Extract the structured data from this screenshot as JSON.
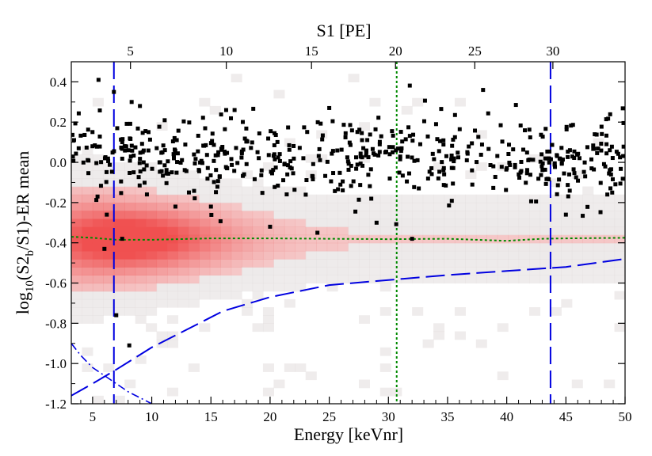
{
  "chart_data": {
    "type": "scatter",
    "title": "",
    "xlabel": "Energy [keVnr]",
    "ylabel_main": "log",
    "ylabel_sub1": "10",
    "ylabel_mid": "(S2",
    "ylabel_sub2": "b",
    "ylabel_end": "/S1)-ER mean",
    "top_xlabel": "S1 [PE]",
    "xlim": [
      3.2,
      50
    ],
    "ylim": [
      -1.2,
      0.5
    ],
    "grid": false,
    "x_ticks": [
      5,
      10,
      15,
      20,
      25,
      30,
      35,
      40,
      45,
      50
    ],
    "x_ticklabels": [
      "5",
      "10",
      "15",
      "20",
      "25",
      "30",
      "35",
      "40",
      "45",
      "50"
    ],
    "y_ticks": [
      -1.2,
      -1.0,
      -0.8,
      -0.6,
      -0.4,
      -0.2,
      0.0,
      0.2,
      0.4
    ],
    "y_ticklabels": [
      "-1.2",
      "-1.0",
      "-0.8",
      "-0.6",
      "-0.4",
      "-0.2",
      "0.0",
      "0.2",
      "0.4"
    ],
    "top_ticks_s1": [
      5,
      10,
      15,
      20,
      25,
      30
    ],
    "top_ticklabels": [
      "5",
      "10",
      "15",
      "20",
      "25",
      "30"
    ],
    "top_tick_energy": [
      8.2,
      16.3,
      23.5,
      30.6,
      37.3,
      43.9
    ],
    "vertical_lines": [
      {
        "x": 6.8,
        "style": "long-dash",
        "color": "#0000e0"
      },
      {
        "x": 43.7,
        "style": "long-dash",
        "color": "#0000e0"
      },
      {
        "x": 30.7,
        "style": "dotted",
        "color": "#008a00"
      }
    ],
    "nr_median_line": {
      "color": "#008a00",
      "x": [
        3.2,
        5,
        7,
        10,
        15,
        20,
        25,
        30,
        35,
        40,
        43,
        45,
        50
      ],
      "y": [
        -0.37,
        -0.375,
        -0.385,
        -0.385,
        -0.378,
        -0.378,
        -0.38,
        -0.382,
        -0.38,
        -0.39,
        -0.38,
        -0.378,
        -0.375
      ]
    },
    "acceptance_curve": {
      "color": "#0000e0",
      "x": [
        3.2,
        5,
        7,
        10,
        13,
        16,
        20,
        25,
        30,
        35,
        40,
        45,
        50
      ],
      "y": [
        -1.16,
        -1.1,
        -1.03,
        -0.92,
        -0.83,
        -0.74,
        -0.67,
        -0.61,
        -0.585,
        -0.56,
        -0.54,
        -0.52,
        -0.48
      ]
    },
    "threshold_curve": {
      "color": "#0000e0",
      "x": [
        3.2,
        4,
        5,
        6,
        7,
        8,
        9,
        10
      ],
      "y": [
        -0.9,
        -0.96,
        -1.02,
        -1.06,
        -1.1,
        -1.14,
        -1.17,
        -1.2
      ]
    },
    "nr_band": {
      "color": "#f08080",
      "center": -0.38,
      "x_peak": 8
    },
    "dark_matter_search_events": {
      "n": 560,
      "y_mean": 0.03,
      "y_sigma": 0.1,
      "outliers": [
        [
          5.5,
          0.41
        ],
        [
          6.8,
          0.35
        ],
        [
          8.3,
          0.3
        ],
        [
          9.0,
          0.28
        ],
        [
          38.0,
          0.36
        ],
        [
          25.0,
          0.27
        ],
        [
          17.0,
          0.26
        ],
        [
          6.2,
          -0.26
        ],
        [
          7.0,
          -0.76
        ],
        [
          8.1,
          -0.91
        ],
        [
          6.0,
          -0.43
        ],
        [
          7.5,
          -0.38
        ],
        [
          24.0,
          -0.35
        ],
        [
          32.0,
          -0.38
        ],
        [
          20.0,
          -0.32
        ],
        [
          29.0,
          -0.3
        ],
        [
          15.0,
          -0.22
        ],
        [
          45.0,
          -0.26
        ],
        [
          48.5,
          -0.16
        ],
        [
          12.0,
          -0.22
        ]
      ]
    },
    "series": [
      {
        "marker": "square",
        "color": "#000000"
      }
    ]
  }
}
